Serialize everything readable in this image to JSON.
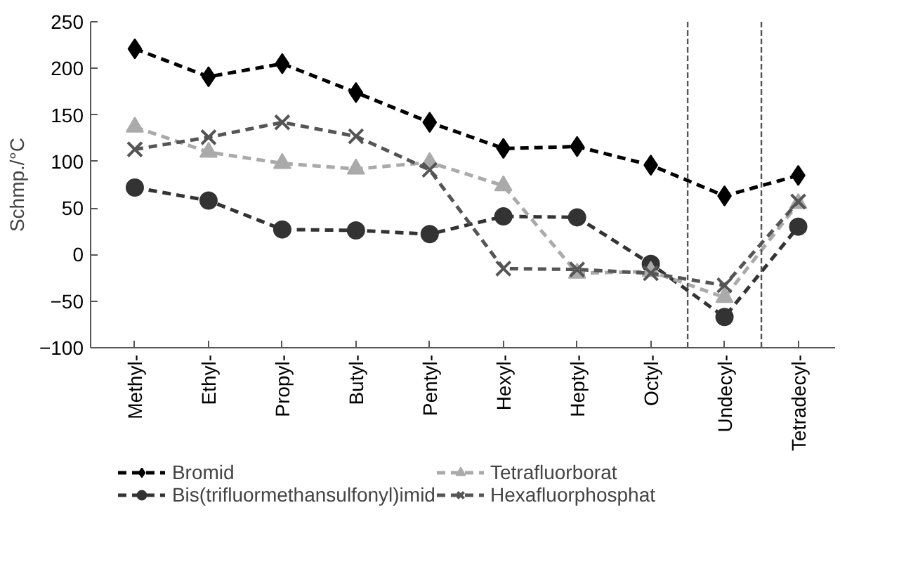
{
  "chart_data": {
    "type": "line",
    "ylabel": "Schmp./°C",
    "categories": [
      "Methyl-",
      "Ethyl-",
      "Propyl-",
      "Butyl-",
      "Pentyl-",
      "Hexyl-",
      "Heptyl-",
      "Octyl-",
      "Undecyl-",
      "Tetradecyl-"
    ],
    "series": [
      {
        "name": "Bromid",
        "color": "#000000",
        "marker": "diamond",
        "values": [
          221,
          191,
          205,
          174,
          142,
          114,
          116,
          96,
          63,
          85
        ]
      },
      {
        "name": "Bis(trifluormethansulfonyl)imid",
        "color": "#333333",
        "marker": "circle",
        "values": [
          72,
          58,
          27,
          26,
          22,
          41,
          40,
          -10,
          -67,
          30
        ]
      },
      {
        "name": "Tetrafluorborat",
        "color": "#aaaaaa",
        "marker": "triangle",
        "values": [
          137,
          110,
          98,
          92,
          99,
          74,
          -20,
          -18,
          -46,
          55
        ]
      },
      {
        "name": "Hexafluorphosphat",
        "color": "#555555",
        "marker": "cross",
        "values": [
          113,
          126,
          142,
          127,
          91,
          -15,
          -16,
          -20,
          -33,
          57
        ]
      }
    ],
    "line_style": "dashed",
    "ylim": [
      -100,
      250
    ],
    "yticks": [
      -100,
      -50,
      0,
      50,
      100,
      150,
      200,
      250
    ],
    "grid": false,
    "legend": "bottom"
  }
}
